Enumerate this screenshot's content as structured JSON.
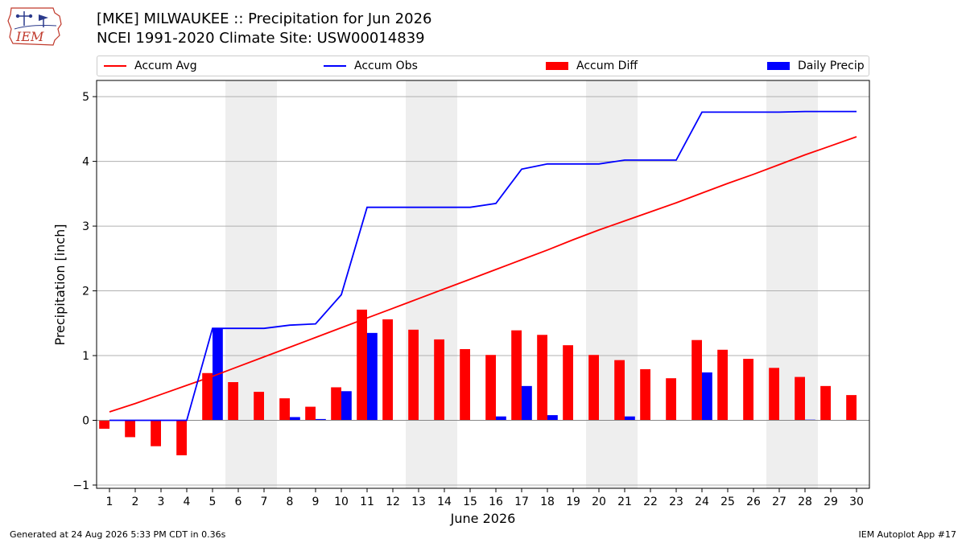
{
  "header": {
    "logo_text": "IEM",
    "title_line1": "[MKE] MILWAUKEE :: Precipitation for Jun 2026",
    "title_line2": "NCEI 1991-2020 Climate Site: USW00014839"
  },
  "legend": {
    "items": [
      {
        "label": "Accum Avg",
        "kind": "line",
        "color": "#ff0000"
      },
      {
        "label": "Accum Obs",
        "kind": "line",
        "color": "#0000ff"
      },
      {
        "label": "Accum Diff",
        "kind": "bar",
        "color": "#ff0000"
      },
      {
        "label": "Daily Precip",
        "kind": "bar",
        "color": "#0000ff"
      }
    ]
  },
  "footer": {
    "generated": "Generated at 24 Aug 2026 5:33 PM CDT in 0.36s",
    "app": "IEM Autoplot App #17"
  },
  "chart_data": {
    "type": "bar",
    "xlabel": "June 2026",
    "ylabel": "Precipitation [inch]",
    "ylim": [
      -1.05,
      5.25
    ],
    "yticks": [
      -1,
      0,
      1,
      2,
      3,
      4,
      5
    ],
    "x": [
      1,
      2,
      3,
      4,
      5,
      6,
      7,
      8,
      9,
      10,
      11,
      12,
      13,
      14,
      15,
      16,
      17,
      18,
      19,
      20,
      21,
      22,
      23,
      24,
      25,
      26,
      27,
      28,
      29,
      30
    ],
    "weekend_days": [
      6,
      7,
      13,
      14,
      20,
      21,
      27,
      28
    ],
    "grid": "horizontal",
    "legend_position": "top",
    "series": [
      {
        "name": "Accum Avg",
        "type": "line",
        "color": "#ff0000",
        "values": [
          0.13,
          0.26,
          0.4,
          0.54,
          0.68,
          0.83,
          0.98,
          1.13,
          1.28,
          1.43,
          1.58,
          1.73,
          1.88,
          2.03,
          2.18,
          2.33,
          2.48,
          2.63,
          2.79,
          2.94,
          3.08,
          3.22,
          3.36,
          3.51,
          3.66,
          3.8,
          3.95,
          4.1,
          4.24,
          4.38
        ]
      },
      {
        "name": "Accum Obs",
        "type": "line",
        "color": "#0000ff",
        "values": [
          0,
          0,
          0,
          0,
          1.42,
          1.42,
          1.42,
          1.47,
          1.49,
          1.94,
          3.29,
          3.29,
          3.29,
          3.29,
          3.29,
          3.35,
          3.88,
          3.96,
          3.96,
          3.96,
          4.02,
          4.02,
          4.02,
          4.76,
          4.76,
          4.76,
          4.76,
          4.77,
          4.77,
          4.77
        ]
      },
      {
        "name": "Accum Diff",
        "type": "bar",
        "color": "#ff0000",
        "values": [
          -0.13,
          -0.26,
          -0.4,
          -0.54,
          0.73,
          0.59,
          0.44,
          0.34,
          0.21,
          0.51,
          1.71,
          1.56,
          1.4,
          1.25,
          1.1,
          1.01,
          1.39,
          1.32,
          1.16,
          1.01,
          0.93,
          0.79,
          0.65,
          1.24,
          1.09,
          0.95,
          0.81,
          0.67,
          0.53,
          0.39
        ]
      },
      {
        "name": "Daily Precip",
        "type": "bar",
        "color": "#0000ff",
        "values": [
          0,
          0,
          0,
          0,
          1.42,
          0,
          0,
          0.05,
          0.02,
          0.45,
          1.35,
          0,
          0,
          0,
          0,
          0.06,
          0.53,
          0.08,
          0,
          0,
          0.06,
          0,
          0,
          0.74,
          0,
          0,
          0,
          0.01,
          0,
          0
        ]
      }
    ]
  }
}
